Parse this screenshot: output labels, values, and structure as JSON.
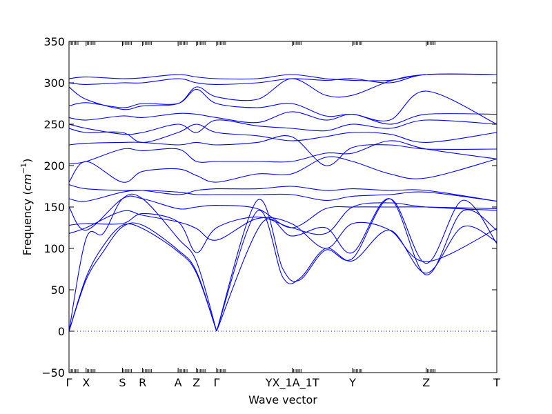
{
  "chart_data": {
    "type": "line",
    "title": "",
    "xlabel": "Wave vector",
    "ylabel": "Frequency ($cm^{-1}$)",
    "ylabel_text": "Frequency (",
    "ylabel_unit_base": "cm",
    "ylabel_unit_exp": "−1",
    "ylabel_close": ")",
    "ylim": [
      -50,
      350
    ],
    "yticks": [
      -50,
      0,
      50,
      100,
      150,
      200,
      250,
      300,
      350
    ],
    "ytick_labels": [
      "−50",
      "0",
      "50",
      "100",
      "150",
      "200",
      "250",
      "300",
      "350"
    ],
    "xlim": [
      0,
      1
    ],
    "xticks": [
      {
        "label": "Γ",
        "x": 0.0
      },
      {
        "label": "X",
        "x": 0.04
      },
      {
        "label": "S",
        "x": 0.125
      },
      {
        "label": "R",
        "x": 0.172
      },
      {
        "label": "A",
        "x": 0.255
      },
      {
        "label": "Z",
        "x": 0.298
      },
      {
        "label": "Γ",
        "x": 0.345
      },
      {
        "label": "YX_1A_1T",
        "x": 0.522
      },
      {
        "label": "Y",
        "x": 0.663
      },
      {
        "label": "Z",
        "x": 0.835
      },
      {
        "label": "T",
        "x": 1.0
      }
    ],
    "hlines": [
      {
        "y": 0,
        "style": "dotted",
        "color": "#0000ff"
      }
    ],
    "grid": false,
    "legend": "none",
    "line_color": "#0000ff",
    "series": [
      {
        "x": [
          0,
          0.04,
          0.08,
          0.125,
          0.172,
          0.255,
          0.298,
          0.345
        ],
        "values": [
          0,
          62,
          96,
          126,
          128,
          98,
          72,
          0
        ]
      },
      {
        "x": [
          0,
          0.04,
          0.08,
          0.125,
          0.172,
          0.255,
          0.298,
          0.345
        ],
        "values": [
          0,
          65,
          103,
          128,
          124,
          96,
          70,
          0
        ]
      },
      {
        "x": [
          0,
          0.04,
          0.08,
          0.125,
          0.172,
          0.255,
          0.298,
          0.345
        ],
        "values": [
          0,
          112,
          118,
          160,
          160,
          112,
          84,
          0
        ]
      },
      {
        "x": [
          0.345,
          0.44,
          0.5,
          0.54,
          0.6,
          0.663,
          0.75,
          0.835,
          0.92,
          1.0
        ],
        "values": [
          0,
          158,
          75,
          62,
          98,
          88,
          160,
          82,
          158,
          106
        ]
      },
      {
        "x": [
          0.345,
          0.44,
          0.5,
          0.54,
          0.6,
          0.663,
          0.75,
          0.835,
          0.92,
          1.0
        ],
        "values": [
          0,
          145,
          65,
          64,
          100,
          85,
          122,
          70,
          126,
          108
        ]
      },
      {
        "x": [
          0.345,
          0.45,
          0.52,
          0.6,
          0.663,
          0.75,
          0.835,
          0.92,
          1.0
        ],
        "values": [
          0,
          130,
          115,
          125,
          95,
          160,
          68,
          145,
          122
        ]
      },
      {
        "x": [
          0,
          0.04,
          0.125,
          0.172,
          0.255,
          0.298,
          0.345,
          0.44,
          0.52,
          0.6,
          0.663,
          0.75,
          0.835,
          1.0
        ],
        "values": [
          118,
          125,
          145,
          140,
          132,
          124,
          110,
          136,
          130,
          100,
          130,
          122,
          84,
          124
        ]
      },
      {
        "x": [
          0,
          0.04,
          0.125,
          0.172,
          0.255,
          0.298,
          0.345,
          0.44,
          0.52,
          0.6,
          0.663,
          0.75,
          0.835,
          1.0
        ],
        "values": [
          128,
          130,
          130,
          142,
          132,
          95,
          125,
          138,
          125,
          118,
          150,
          155,
          150,
          146
        ]
      },
      {
        "x": [
          0,
          0.04,
          0.125,
          0.172,
          0.255,
          0.298,
          0.345,
          0.44,
          0.52,
          0.6,
          0.663,
          0.75,
          0.835,
          1.0
        ],
        "values": [
          150,
          122,
          160,
          160,
          148,
          150,
          152,
          148,
          125,
          148,
          150,
          150,
          150,
          148
        ]
      },
      {
        "x": [
          0,
          0.04,
          0.125,
          0.172,
          0.255,
          0.298,
          0.345,
          0.44,
          0.52,
          0.6,
          0.663,
          0.75,
          0.835,
          1.0
        ],
        "values": [
          160,
          157,
          168,
          170,
          168,
          165,
          165,
          165,
          165,
          158,
          163,
          165,
          168,
          157
        ]
      },
      {
        "x": [
          0,
          0.04,
          0.125,
          0.172,
          0.255,
          0.298,
          0.345,
          0.44,
          0.52,
          0.6,
          0.663,
          0.75,
          0.835,
          1.0
        ],
        "values": [
          177,
          172,
          170,
          170,
          165,
          170,
          172,
          172,
          175,
          170,
          172,
          170,
          170,
          157
        ]
      },
      {
        "x": [
          0,
          0.04,
          0.125,
          0.172,
          0.255,
          0.298,
          0.345,
          0.44,
          0.52,
          0.6,
          0.663,
          0.75,
          0.835,
          1.0
        ],
        "values": [
          180,
          205,
          180,
          193,
          196,
          188,
          180,
          190,
          190,
          210,
          205,
          190,
          185,
          208
        ]
      },
      {
        "x": [
          0,
          0.04,
          0.125,
          0.172,
          0.255,
          0.298,
          0.345,
          0.44,
          0.52,
          0.6,
          0.663,
          0.75,
          0.835,
          1.0
        ],
        "values": [
          202,
          205,
          220,
          218,
          220,
          205,
          205,
          205,
          205,
          215,
          215,
          230,
          220,
          208
        ]
      },
      {
        "x": [
          0,
          0.04,
          0.125,
          0.172,
          0.255,
          0.298,
          0.345,
          0.44,
          0.52,
          0.6,
          0.663,
          0.75,
          0.835,
          1.0
        ],
        "values": [
          225,
          227,
          228,
          228,
          225,
          228,
          225,
          228,
          235,
          200,
          222,
          225,
          220,
          220
        ]
      },
      {
        "x": [
          0,
          0.04,
          0.125,
          0.172,
          0.255,
          0.298,
          0.345,
          0.44,
          0.52,
          0.6,
          0.663,
          0.75,
          0.835,
          1.0
        ],
        "values": [
          245,
          240,
          240,
          228,
          240,
          250,
          240,
          236,
          230,
          235,
          240,
          238,
          228,
          240
        ]
      },
      {
        "x": [
          0,
          0.04,
          0.125,
          0.172,
          0.255,
          0.298,
          0.345,
          0.44,
          0.52,
          0.6,
          0.663,
          0.75,
          0.835,
          1.0
        ],
        "values": [
          250,
          245,
          238,
          240,
          250,
          240,
          255,
          248,
          245,
          242,
          250,
          245,
          255,
          250
        ]
      },
      {
        "x": [
          0,
          0.04,
          0.125,
          0.172,
          0.255,
          0.298,
          0.345,
          0.44,
          0.52,
          0.6,
          0.663,
          0.75,
          0.835,
          1.0
        ],
        "values": [
          258,
          255,
          260,
          258,
          263,
          262,
          258,
          252,
          265,
          255,
          262,
          250,
          262,
          262
        ]
      },
      {
        "x": [
          0,
          0.04,
          0.125,
          0.172,
          0.255,
          0.298,
          0.345,
          0.44,
          0.52,
          0.6,
          0.663,
          0.75,
          0.835,
          1.0
        ],
        "values": [
          272,
          276,
          270,
          275,
          275,
          292,
          275,
          270,
          275,
          260,
          262,
          255,
          290,
          250
        ]
      },
      {
        "x": [
          0,
          0.04,
          0.125,
          0.172,
          0.255,
          0.298,
          0.345,
          0.44,
          0.52,
          0.6,
          0.663,
          0.75,
          0.835,
          1.0
        ],
        "values": [
          295,
          280,
          268,
          272,
          275,
          295,
          283,
          280,
          305,
          285,
          285,
          302,
          310,
          310
        ]
      },
      {
        "x": [
          0,
          0.04,
          0.125,
          0.172,
          0.255,
          0.298,
          0.345,
          0.44,
          0.52,
          0.6,
          0.663,
          0.75,
          0.835,
          1.0
        ],
        "values": [
          300,
          298,
          300,
          300,
          305,
          300,
          298,
          300,
          305,
          303,
          305,
          300,
          310,
          310
        ]
      },
      {
        "x": [
          0,
          0.04,
          0.125,
          0.172,
          0.255,
          0.298,
          0.345,
          0.44,
          0.52,
          0.6,
          0.663,
          0.75,
          0.835,
          1.0
        ],
        "values": [
          305,
          307,
          305,
          306,
          310,
          307,
          305,
          305,
          310,
          305,
          303,
          303,
          310,
          310
        ]
      }
    ]
  }
}
